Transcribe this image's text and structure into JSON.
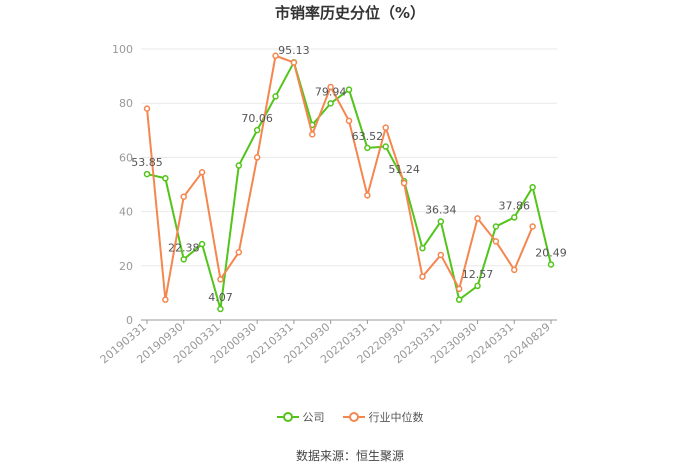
{
  "page": {
    "title": "市销率历史分位（%）",
    "source": "数据来源：恒生聚源"
  },
  "colors": {
    "company": "#52c41a",
    "industry": "#f5864f",
    "axis": "#999999",
    "grid": "#e8e8e8",
    "label": "#555555"
  },
  "chart_data": {
    "type": "line",
    "title": "市销率历史分位（%）",
    "xlabel": "",
    "ylabel": "",
    "ylim": [
      0,
      100
    ],
    "yticks": [
      0,
      20,
      40,
      60,
      80,
      100
    ],
    "grid": true,
    "legend_position": "bottom-center",
    "x_count": 23,
    "x_tick_labels": [
      "20190331",
      "20190930",
      "20200331",
      "20200930",
      "20210331",
      "20210930",
      "20220331",
      "20220930",
      "20230331",
      "20230930",
      "20240331",
      "20240829"
    ],
    "x_tick_indices": [
      0,
      2,
      4,
      6,
      8,
      10,
      12,
      14,
      16,
      18,
      20,
      22
    ],
    "series": [
      {
        "name": "公司",
        "color": "#52c41a",
        "values": [
          53.85,
          52.3,
          22.38,
          28.0,
          4.07,
          57.0,
          70.06,
          82.5,
          95.13,
          72.0,
          79.94,
          85.0,
          63.52,
          64.0,
          51.24,
          26.5,
          36.34,
          7.5,
          12.57,
          34.5,
          37.86,
          49.0,
          20.49
        ],
        "labels": {
          "0": "53.85",
          "2": "22.38",
          "4": "4.07",
          "6": "70.06",
          "8": "95.13",
          "10": "79.94",
          "12": "63.52",
          "14": "51.24",
          "16": "36.34",
          "18": "12.57",
          "20": "37.86",
          "22": "20.49"
        }
      },
      {
        "name": "行业中位数",
        "color": "#f5864f",
        "values": [
          78.0,
          7.5,
          45.5,
          54.5,
          15.0,
          25.0,
          60.0,
          97.5,
          95.0,
          68.5,
          86.0,
          73.5,
          46.0,
          71.0,
          50.5,
          16.0,
          24.0,
          11.5,
          37.5,
          29.0,
          18.5,
          34.5,
          null
        ]
      }
    ]
  }
}
